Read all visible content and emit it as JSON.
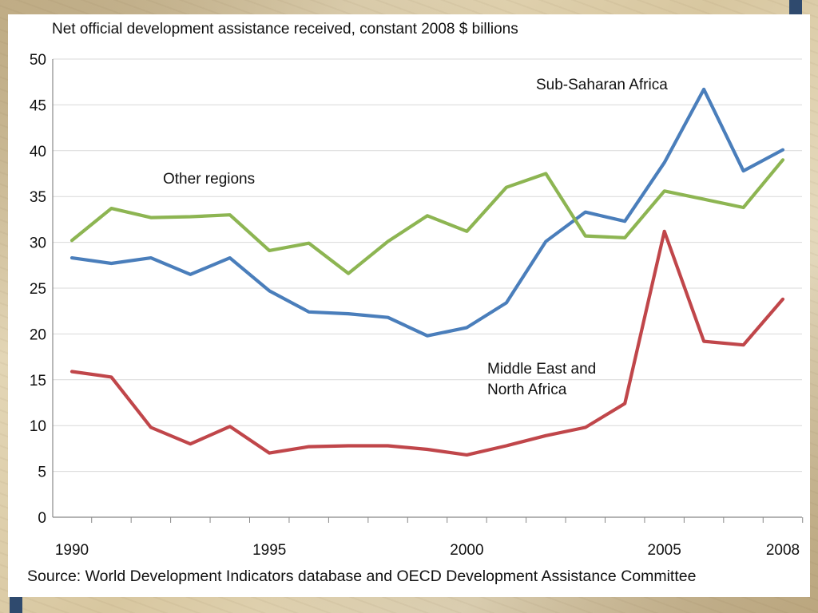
{
  "chart_data": {
    "type": "line",
    "title": "Net official development assistance received, constant 2008 $ billions",
    "source": "Source: World Development Indicators database and OECD Development Assistance Committee",
    "x": [
      1990,
      1991,
      1992,
      1993,
      1994,
      1995,
      1996,
      1997,
      1998,
      1999,
      2000,
      2001,
      2002,
      2003,
      2004,
      2005,
      2006,
      2007,
      2008
    ],
    "x_tick_labels": [
      "1990",
      "1995",
      "2000",
      "2005",
      "2008"
    ],
    "x_tick_values": [
      1990,
      1995,
      2000,
      2005,
      2008
    ],
    "ylim": [
      0,
      50
    ],
    "y_ticks": [
      "0",
      "5",
      "10",
      "15",
      "20",
      "25",
      "30",
      "35",
      "40",
      "45",
      "50"
    ],
    "y_tick_values": [
      0,
      5,
      10,
      15,
      20,
      25,
      30,
      35,
      40,
      45,
      50
    ],
    "grid": true,
    "series": [
      {
        "name": "Sub-Saharan Africa",
        "color": "#4a7ebb",
        "values": [
          28.3,
          27.7,
          28.3,
          26.5,
          28.3,
          24.7,
          22.4,
          22.2,
          21.8,
          19.8,
          20.7,
          23.4,
          30.1,
          33.3,
          32.3,
          38.7,
          46.7,
          37.8,
          40.1
        ]
      },
      {
        "name": "Other regions",
        "color": "#8db552",
        "values": [
          30.2,
          33.7,
          32.7,
          32.8,
          33.0,
          29.1,
          29.9,
          26.6,
          30.1,
          32.9,
          31.2,
          36.0,
          37.5,
          30.7,
          30.5,
          35.6,
          34.7,
          33.8,
          39.0
        ]
      },
      {
        "name": "Middle East and North Africa",
        "label_lines": [
          "Middle East and",
          "North Africa"
        ],
        "color": "#c0464a",
        "values": [
          15.9,
          15.3,
          9.8,
          8.0,
          9.9,
          7.0,
          7.7,
          7.8,
          7.8,
          7.4,
          6.8,
          7.8,
          8.9,
          9.8,
          12.4,
          31.2,
          19.2,
          18.8,
          23.8
        ]
      }
    ]
  }
}
